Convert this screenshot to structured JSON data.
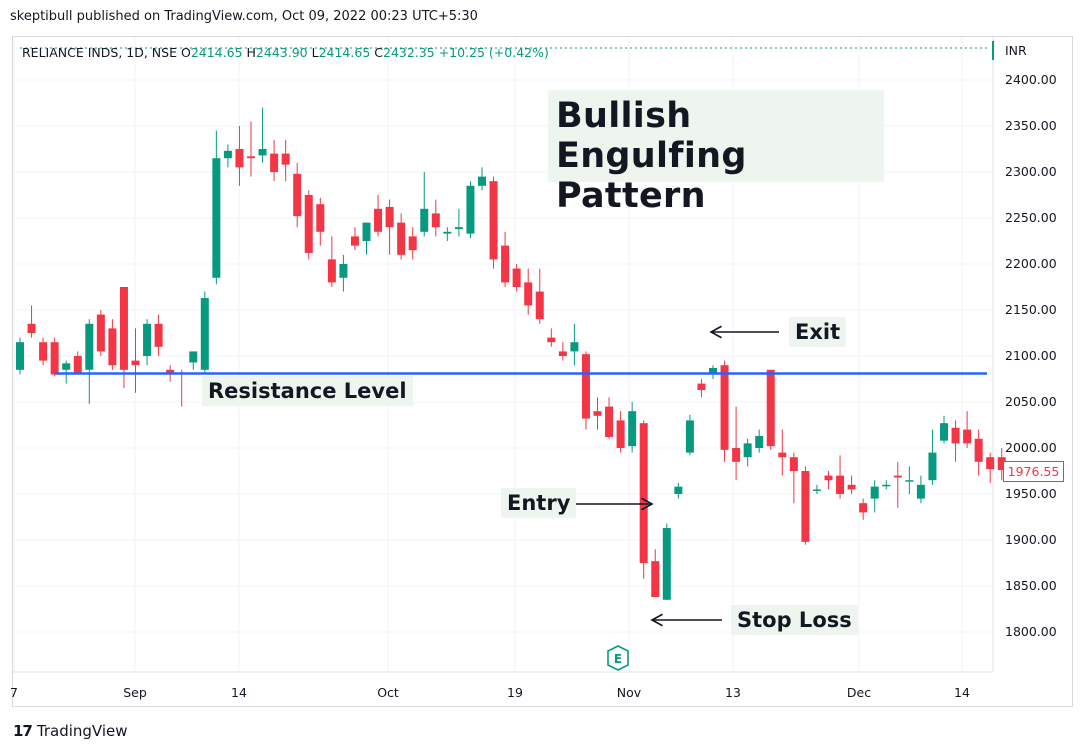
{
  "header": {
    "published": "skeptibull published on TradingView.com, Oct 09, 2022 00:23 UTC+5:30"
  },
  "legend": {
    "symbol": "RELIANCE INDS, 1D, NSE",
    "o_label": "O",
    "o_value": "2414.65",
    "h_label": "H",
    "h_value": "2443.90",
    "l_label": "L",
    "l_value": "2414.65",
    "c_label": "C",
    "c_value": "2432.35",
    "change": "+10.25 (+0.42%)"
  },
  "price_axis": {
    "unit": "INR",
    "ticks": [
      "2400.00",
      "2350.00",
      "2300.00",
      "2250.00",
      "2200.00",
      "2150.00",
      "2100.00",
      "2050.00",
      "2000.00",
      "1950.00",
      "1900.00",
      "1850.00",
      "1800.00"
    ],
    "last_price": "1976.55"
  },
  "time_axis": {
    "ticks": [
      "7",
      "Sep",
      "14",
      "Oct",
      "19",
      "Nov",
      "13",
      "Dec",
      "14"
    ]
  },
  "annotations": {
    "title": "Bullish Engulfing Pattern",
    "title_line1": "Bullish Engulfing",
    "title_line2": "Pattern",
    "resistance": "Resistance Level",
    "exit": "Exit",
    "entry": "Entry",
    "stop_loss": "Stop Loss",
    "event_badge": "E"
  },
  "brand": {
    "logo": "17",
    "name": "TradingView"
  },
  "colors": {
    "up": "#089981",
    "down": "#f23645",
    "resistance": "#2962ff",
    "annotation_bg": "#eef5ee"
  },
  "chart_data": {
    "type": "candlestick",
    "ylim": [
      1775,
      2425
    ],
    "resistance_level": 2081,
    "candles": [
      {
        "o": 2085,
        "h": 2120,
        "l": 2080,
        "c": 2115
      },
      {
        "o": 2135,
        "h": 2155,
        "l": 2120,
        "c": 2125
      },
      {
        "o": 2115,
        "h": 2120,
        "l": 2090,
        "c": 2095
      },
      {
        "o": 2115,
        "h": 2120,
        "l": 2078,
        "c": 2080
      },
      {
        "o": 2085,
        "h": 2095,
        "l": 2070,
        "c": 2092
      },
      {
        "o": 2100,
        "h": 2105,
        "l": 2080,
        "c": 2082
      },
      {
        "o": 2085,
        "h": 2140,
        "l": 2048,
        "c": 2135
      },
      {
        "o": 2145,
        "h": 2150,
        "l": 2100,
        "c": 2105
      },
      {
        "o": 2130,
        "h": 2140,
        "l": 2085,
        "c": 2090
      },
      {
        "o": 2175,
        "h": 2175,
        "l": 2065,
        "c": 2085
      },
      {
        "o": 2095,
        "h": 2130,
        "l": 2060,
        "c": 2090
      },
      {
        "o": 2100,
        "h": 2140,
        "l": 2090,
        "c": 2135
      },
      {
        "o": 2135,
        "h": 2145,
        "l": 2100,
        "c": 2110
      },
      {
        "o": 2085,
        "h": 2090,
        "l": 2072,
        "c": 2080
      },
      {
        "o": 2082,
        "h": 2085,
        "l": 2045,
        "c": 2080
      },
      {
        "o": 2093,
        "h": 2105,
        "l": 2085,
        "c": 2105
      },
      {
        "o": 2085,
        "h": 2170,
        "l": 2080,
        "c": 2163
      },
      {
        "o": 2185,
        "h": 2345,
        "l": 2178,
        "c": 2315
      },
      {
        "o": 2315,
        "h": 2330,
        "l": 2305,
        "c": 2323
      },
      {
        "o": 2325,
        "h": 2350,
        "l": 2285,
        "c": 2305
      },
      {
        "o": 2317,
        "h": 2355,
        "l": 2295,
        "c": 2315
      },
      {
        "o": 2318,
        "h": 2370,
        "l": 2310,
        "c": 2325
      },
      {
        "o": 2320,
        "h": 2335,
        "l": 2290,
        "c": 2300
      },
      {
        "o": 2320,
        "h": 2335,
        "l": 2290,
        "c": 2308
      },
      {
        "o": 2298,
        "h": 2310,
        "l": 2240,
        "c": 2252
      },
      {
        "o": 2275,
        "h": 2280,
        "l": 2205,
        "c": 2212
      },
      {
        "o": 2265,
        "h": 2272,
        "l": 2220,
        "c": 2235
      },
      {
        "o": 2205,
        "h": 2230,
        "l": 2175,
        "c": 2180
      },
      {
        "o": 2185,
        "h": 2210,
        "l": 2170,
        "c": 2200
      },
      {
        "o": 2230,
        "h": 2240,
        "l": 2215,
        "c": 2220
      },
      {
        "o": 2225,
        "h": 2245,
        "l": 2210,
        "c": 2245
      },
      {
        "o": 2260,
        "h": 2275,
        "l": 2230,
        "c": 2235
      },
      {
        "o": 2262,
        "h": 2270,
        "l": 2210,
        "c": 2240
      },
      {
        "o": 2245,
        "h": 2255,
        "l": 2205,
        "c": 2210
      },
      {
        "o": 2230,
        "h": 2240,
        "l": 2205,
        "c": 2215
      },
      {
        "o": 2235,
        "h": 2300,
        "l": 2230,
        "c": 2260
      },
      {
        "o": 2255,
        "h": 2270,
        "l": 2230,
        "c": 2240
      },
      {
        "o": 2233,
        "h": 2240,
        "l": 2225,
        "c": 2235
      },
      {
        "o": 2238,
        "h": 2260,
        "l": 2230,
        "c": 2240
      },
      {
        "o": 2233,
        "h": 2290,
        "l": 2228,
        "c": 2285
      },
      {
        "o": 2285,
        "h": 2305,
        "l": 2280,
        "c": 2295
      },
      {
        "o": 2290,
        "h": 2295,
        "l": 2195,
        "c": 2205
      },
      {
        "o": 2220,
        "h": 2235,
        "l": 2175,
        "c": 2180
      },
      {
        "o": 2195,
        "h": 2200,
        "l": 2170,
        "c": 2175
      },
      {
        "o": 2180,
        "h": 2195,
        "l": 2145,
        "c": 2155
      },
      {
        "o": 2170,
        "h": 2195,
        "l": 2135,
        "c": 2140
      },
      {
        "o": 2120,
        "h": 2130,
        "l": 2110,
        "c": 2115
      },
      {
        "o": 2105,
        "h": 2115,
        "l": 2095,
        "c": 2100
      },
      {
        "o": 2105,
        "h": 2135,
        "l": 2090,
        "c": 2115
      },
      {
        "o": 2102,
        "h": 2105,
        "l": 2020,
        "c": 2032
      },
      {
        "o": 2040,
        "h": 2055,
        "l": 2020,
        "c": 2035
      },
      {
        "o": 2045,
        "h": 2055,
        "l": 2010,
        "c": 2012
      },
      {
        "o": 2030,
        "h": 2040,
        "l": 1995,
        "c": 2000
      },
      {
        "o": 2002,
        "h": 2050,
        "l": 1995,
        "c": 2040
      },
      {
        "o": 2027,
        "h": 2030,
        "l": 1858,
        "c": 1875
      },
      {
        "o": 1877,
        "h": 1890,
        "l": 1838,
        "c": 1838
      },
      {
        "o": 1835,
        "h": 1918,
        "l": 1835,
        "c": 1913
      },
      {
        "o": 1950,
        "h": 1962,
        "l": 1945,
        "c": 1958
      },
      {
        "o": 1995,
        "h": 2036,
        "l": 1992,
        "c": 2030
      },
      {
        "o": 2070,
        "h": 2075,
        "l": 2055,
        "c": 2063
      },
      {
        "o": 2080,
        "h": 2090,
        "l": 2075,
        "c": 2087
      },
      {
        "o": 2090,
        "h": 2095,
        "l": 1985,
        "c": 1998
      },
      {
        "o": 2000,
        "h": 2045,
        "l": 1965,
        "c": 1985
      },
      {
        "o": 1990,
        "h": 2010,
        "l": 1980,
        "c": 2005
      },
      {
        "o": 2000,
        "h": 2020,
        "l": 1995,
        "c": 2013
      },
      {
        "o": 2085,
        "h": 2085,
        "l": 1998,
        "c": 2002
      },
      {
        "o": 1995,
        "h": 2020,
        "l": 1970,
        "c": 1990
      },
      {
        "o": 1990,
        "h": 1995,
        "l": 1940,
        "c": 1975
      },
      {
        "o": 1975,
        "h": 1980,
        "l": 1895,
        "c": 1898
      },
      {
        "o": 1955,
        "h": 1960,
        "l": 1950,
        "c": 1955
      },
      {
        "o": 1970,
        "h": 1975,
        "l": 1955,
        "c": 1965
      },
      {
        "o": 1970,
        "h": 1992,
        "l": 1945,
        "c": 1950
      },
      {
        "o": 1960,
        "h": 1970,
        "l": 1950,
        "c": 1955
      },
      {
        "o": 1940,
        "h": 1945,
        "l": 1922,
        "c": 1930
      },
      {
        "o": 1945,
        "h": 1965,
        "l": 1930,
        "c": 1958
      },
      {
        "o": 1960,
        "h": 1965,
        "l": 1955,
        "c": 1960
      },
      {
        "o": 1970,
        "h": 1985,
        "l": 1935,
        "c": 1968
      },
      {
        "o": 1965,
        "h": 1980,
        "l": 1950,
        "c": 1965
      },
      {
        "o": 1945,
        "h": 1970,
        "l": 1940,
        "c": 1960
      },
      {
        "o": 1965,
        "h": 2020,
        "l": 1960,
        "c": 1995
      },
      {
        "o": 2008,
        "h": 2035,
        "l": 2005,
        "c": 2027
      },
      {
        "o": 2022,
        "h": 2030,
        "l": 1985,
        "c": 2005
      },
      {
        "o": 2020,
        "h": 2040,
        "l": 2000,
        "c": 2005
      },
      {
        "o": 2010,
        "h": 2020,
        "l": 1970,
        "c": 1985
      },
      {
        "o": 1990,
        "h": 1995,
        "l": 1962,
        "c": 1977
      },
      {
        "o": 1990,
        "h": 2000,
        "l": 1965,
        "c": 1976
      }
    ]
  }
}
